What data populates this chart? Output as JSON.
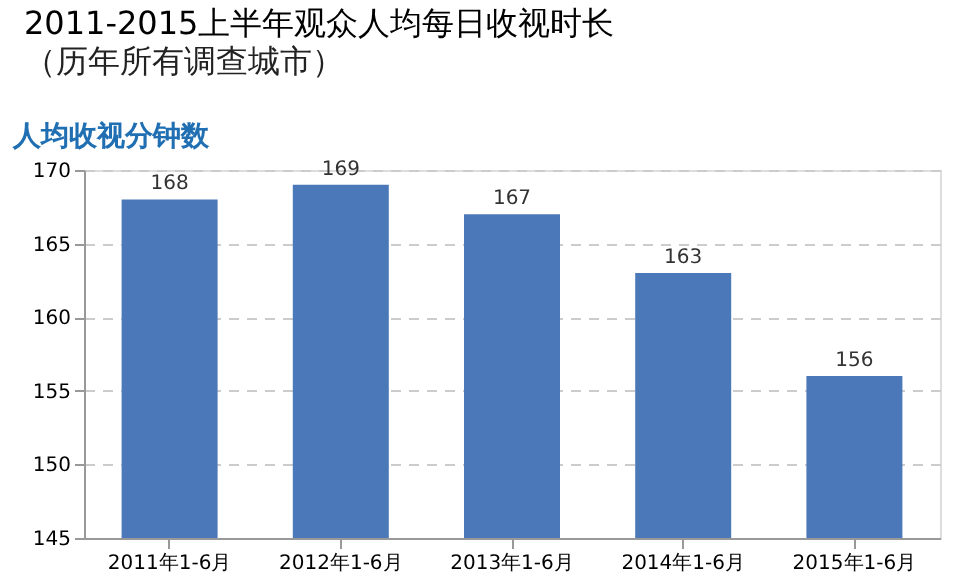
{
  "chart_data": {
    "type": "bar",
    "title": "2011-2015上半年观众人均每日收视时长",
    "subtitle": "（历年所有调查城市）",
    "ylabel": "人均收视分钟数",
    "categories": [
      "2011年1-6月",
      "2012年1-6月",
      "2013年1-6月",
      "2014年1-6月",
      "2015年1-6月"
    ],
    "values": [
      168,
      169,
      167,
      163,
      156
    ],
    "color": "#4a78b8",
    "ylim": [
      145,
      170
    ],
    "yticks": [
      145,
      150,
      155,
      160,
      165,
      170
    ],
    "grid": "y",
    "data_labels": true
  }
}
